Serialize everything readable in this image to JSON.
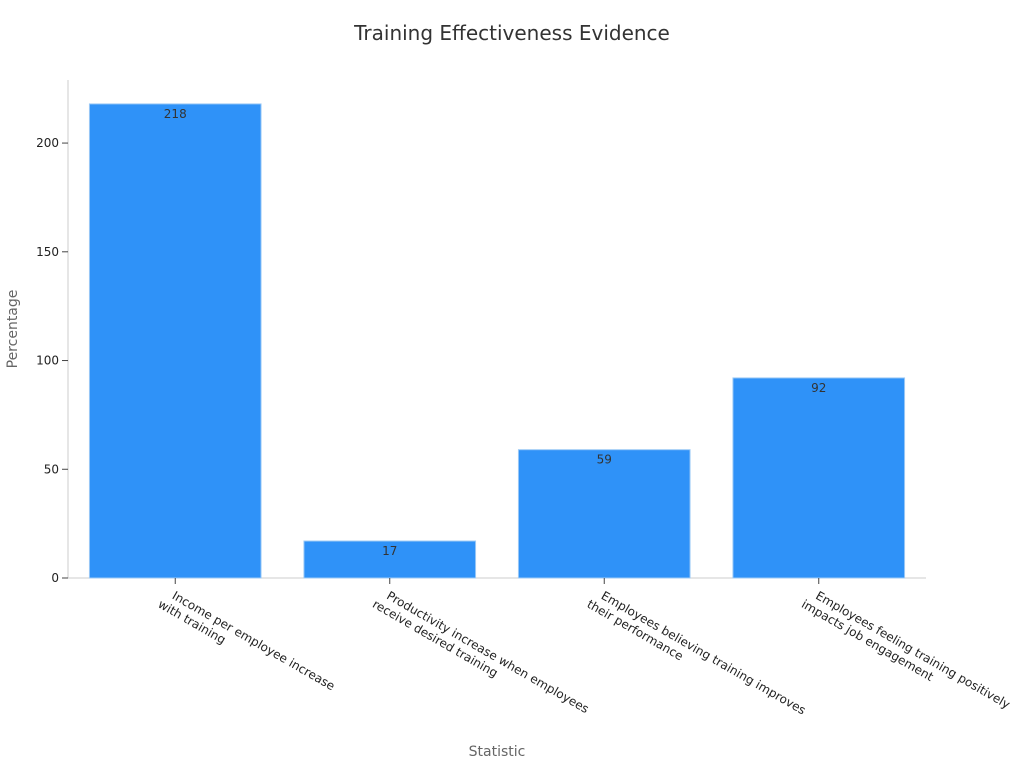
{
  "chart_data": {
    "type": "bar",
    "title": "Training Effectiveness Evidence",
    "x_label": "Statistic",
    "y_label": "Percentage",
    "categories": [
      "Income per employee increase\nwith training",
      "Productivity increase when employees\nreceive desired training",
      "Employees believing training improves\ntheir performance",
      "Employees feeling training positively\nimpacts job engagement"
    ],
    "values": [
      218,
      17,
      59,
      92
    ],
    "color": "#2f92f8",
    "ylim": [
      0,
      229
    ],
    "yticks": [
      0,
      50,
      100,
      150,
      200
    ],
    "grid": false
  }
}
